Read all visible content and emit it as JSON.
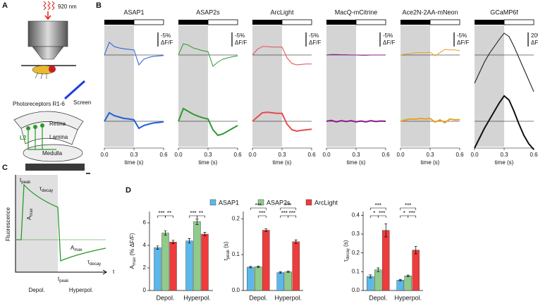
{
  "panel_labels": [
    "A",
    "B",
    "C",
    "D"
  ],
  "panel_a": {
    "wavelength": "920 nm",
    "screen": "Screen",
    "photoreceptors": "Photoreceptors R1-6",
    "retina": "Retina",
    "lamina": "Lamina",
    "l2": "L2",
    "medulla": "Medulla"
  },
  "panel_b": {
    "xlabel": "time (s)",
    "xlim": [
      0,
      0.6
    ],
    "dark_period": [
      0,
      0.3
    ],
    "time_ticks": [
      {
        "value": 0,
        "label": "0.0"
      },
      0.3,
      0.6
    ],
    "t": [
      0,
      0.05,
      0.1,
      0.15,
      0.2,
      0.25,
      0.3,
      0.35,
      0.4,
      0.45,
      0.5,
      0.55,
      0.6
    ],
    "indicators": [
      {
        "name": "ASAP1",
        "color": "#1f5fd6",
        "scale_bar": {
          "value": -5,
          "label": "-5%",
          "unit": "ΔF/F"
        },
        "trial": [
          0,
          -4.5,
          -3,
          -2.5,
          -2.2,
          -2,
          -1.8,
          3.5,
          1.5,
          0.8,
          0.5,
          0.3,
          0.2
        ],
        "mean": [
          0,
          -3,
          -2,
          -1.5,
          -1,
          -0.8,
          -0.5,
          2.5,
          1.5,
          1,
          0.6,
          0.4,
          0.2
        ]
      },
      {
        "name": "ASAP2s",
        "color": "#2e9a2e",
        "scale_bar": {
          "value": -5,
          "label": "-5%",
          "unit": "ΔF/F"
        },
        "trial": [
          0,
          -4,
          -3.5,
          -2.5,
          -2,
          -1.5,
          -1.2,
          4,
          2.5,
          1.5,
          1,
          0.6,
          0.3
        ],
        "mean": [
          0,
          -4.5,
          -3.5,
          -2.5,
          -1.8,
          -1.2,
          -0.8,
          3,
          5,
          4.5,
          3.5,
          2.5,
          1.5
        ]
      },
      {
        "name": "ArcLight",
        "color": "#e84b4b",
        "scale_bar": {
          "value": -5,
          "label": "-5%",
          "unit": "ΔF/F"
        },
        "trial": [
          0,
          -2,
          -3,
          -3,
          -2.8,
          -2.8,
          -2.8,
          1,
          3,
          3.5,
          3.3,
          3.2,
          3.2
        ],
        "mean": [
          0,
          -1.5,
          -3,
          -3.2,
          -3,
          -2.8,
          -2.8,
          1,
          3,
          3.5,
          3.2,
          3,
          2.8
        ]
      },
      {
        "name": "MacQ-mCitrine",
        "color": "#8b1a8b",
        "scale_bar": {
          "value": -5,
          "label": "-5%",
          "unit": "ΔF/F"
        },
        "trial": [
          0,
          -0.2,
          -0.2,
          -0.1,
          -0.1,
          0,
          0,
          0.1,
          0.1,
          0,
          0,
          0,
          0
        ],
        "mean": [
          0,
          -0.3,
          0.2,
          -0.2,
          0.1,
          -0.2,
          0.2,
          -0.1,
          0.2,
          -0.2,
          0.1,
          -0.1,
          0
        ]
      },
      {
        "name": "Ace2N-2AA-mNeon",
        "color": "#e8a020",
        "scale_bar": {
          "value": -5,
          "label": "-5%",
          "unit": "ΔF/F"
        },
        "trial": [
          0,
          -0.3,
          -0.5,
          -0.8,
          -0.8,
          -0.8,
          -1,
          0.3,
          -0.8,
          -2,
          -1.8,
          -1.8,
          -1.5
        ],
        "mean": [
          0,
          -0.5,
          -0.8,
          -0.7,
          -1,
          -0.8,
          -1,
          0.3,
          -0.5,
          0.5,
          -0.8,
          -0.5,
          -0.6
        ]
      },
      {
        "name": "GCaMP6f",
        "color": "#111111",
        "scale_bar": {
          "value": 20,
          "label": "20%",
          "unit": "ΔF/F"
        },
        "trial": [
          -40,
          -25,
          -10,
          2,
          12,
          22,
          31,
          26,
          12,
          -4,
          -20,
          -36,
          -52
        ],
        "mean": [
          -38,
          -24,
          -10,
          2,
          14,
          26,
          36,
          30,
          14,
          -4,
          -20,
          -32,
          -40
        ]
      }
    ]
  },
  "panel_c": {
    "ylabel": "Fluorescence",
    "xlabel": "t",
    "t_peak_1": {
      "base": "t",
      "sub": "peak"
    },
    "t_peak_2": {
      "base": "t",
      "sub": "peak"
    },
    "tau_decay_1": {
      "base": "τ",
      "sub": "decay"
    },
    "tau_decay_2": {
      "base": "τ",
      "sub": "decay"
    },
    "a_max_1": {
      "base": "A",
      "sub": "max"
    },
    "a_max_2": {
      "base": "A",
      "sub": "max"
    },
    "depol": "Depol.",
    "hyperpol": "Hyperpol."
  },
  "chart_data": [
    {
      "type": "bar",
      "ylabel": {
        "base": "A",
        "sub": "max",
        "rest": " (% ΔF/F)"
      },
      "categories": [
        "Depol.",
        "Hyperpol."
      ],
      "ylim": [
        0,
        7
      ],
      "yticks": [
        0,
        2,
        4,
        6
      ],
      "series": [
        {
          "name": "ASAP1",
          "color": "#5bb8ea",
          "values": [
            3.8,
            4.4
          ],
          "errors": [
            0.15,
            0.2
          ]
        },
        {
          "name": "ASAP2s",
          "color": "#8fcb8a",
          "values": [
            5.1,
            6.1
          ],
          "errors": [
            0.2,
            0.25
          ]
        },
        {
          "name": "ArcLight",
          "color": "#ee3b3b",
          "values": [
            4.3,
            5.0
          ],
          "errors": [
            0.15,
            0.15
          ]
        }
      ],
      "significance": [
        [
          "***",
          "**"
        ],
        [
          "***",
          "**"
        ]
      ]
    },
    {
      "type": "bar",
      "ylabel": {
        "base": "t",
        "sub": "peak",
        "rest": " (s)"
      },
      "categories": [
        "Depol.",
        "Hyperpol."
      ],
      "ylim": [
        0,
        0.22
      ],
      "yticks": [
        {
          "value": 0,
          "label": "0.0"
        },
        0.1,
        0.2
      ],
      "series": [
        {
          "color": "#5bb8ea",
          "values": [
            0.065,
            0.05
          ],
          "errors": [
            0.002,
            0.002
          ]
        },
        {
          "color": "#8fcb8a",
          "values": [
            0.066,
            0.052
          ],
          "errors": [
            0.002,
            0.002
          ]
        },
        {
          "color": "#ee3b3b",
          "values": [
            0.168,
            0.136
          ],
          "errors": [
            0.004,
            0.005
          ]
        }
      ],
      "significance": [
        [
          "***",
          "***"
        ],
        [
          "***",
          "***",
          "***"
        ]
      ]
    },
    {
      "type": "bar",
      "ylabel": {
        "base": "τ",
        "sub": "decay",
        "rest": " (s)"
      },
      "categories": [
        "Depol.",
        "Hyperpol."
      ],
      "ylim": [
        0,
        0.42
      ],
      "yticks": [
        {
          "value": 0,
          "label": "0.0"
        },
        0.1,
        0.2,
        0.3,
        0.4
      ],
      "series": [
        {
          "color": "#5bb8ea",
          "values": [
            0.075,
            0.055
          ],
          "errors": [
            0.008,
            0.004
          ]
        },
        {
          "color": "#8fcb8a",
          "values": [
            0.11,
            0.078
          ],
          "errors": [
            0.01,
            0.004
          ]
        },
        {
          "color": "#ee3b3b",
          "values": [
            0.32,
            0.215
          ],
          "errors": [
            0.035,
            0.02
          ]
        }
      ],
      "significance": [
        [
          "***",
          "*",
          "***"
        ],
        [
          "***",
          "*",
          "***"
        ]
      ]
    }
  ]
}
